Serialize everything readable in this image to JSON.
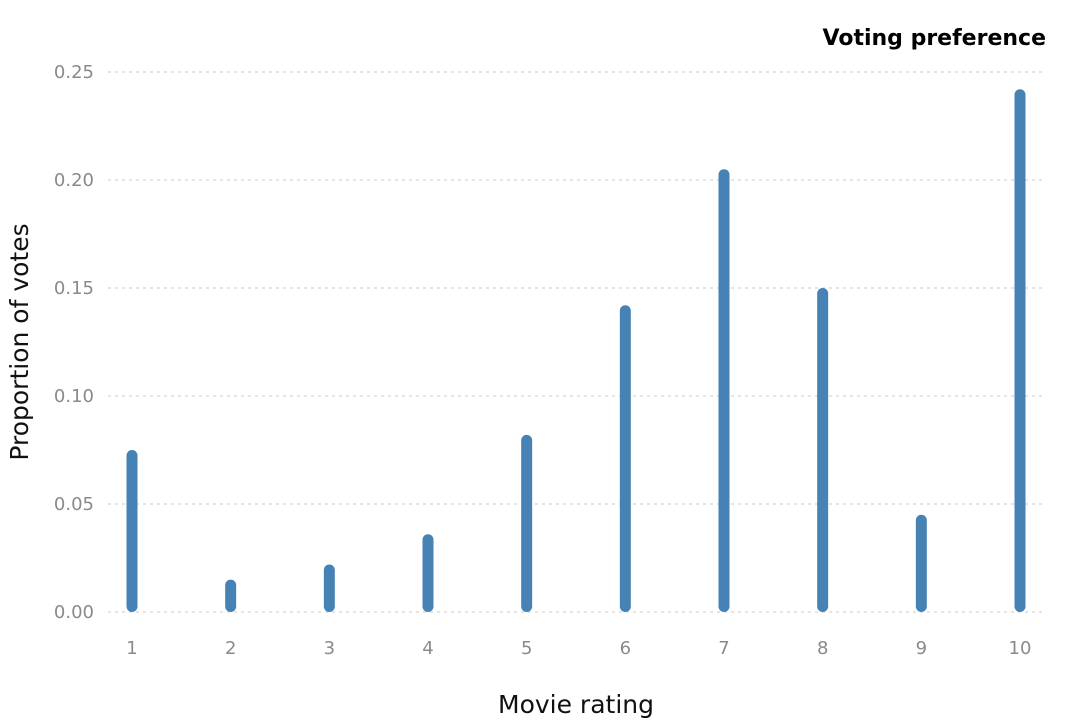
{
  "chart_data": {
    "type": "bar",
    "title": "Voting preference",
    "xlabel": "Movie rating",
    "ylabel": "Proportion of votes",
    "categories": [
      "1",
      "2",
      "3",
      "4",
      "5",
      "6",
      "7",
      "8",
      "9",
      "10"
    ],
    "values": [
      0.075,
      0.015,
      0.022,
      0.036,
      0.082,
      0.142,
      0.205,
      0.15,
      0.045,
      0.242
    ],
    "ylim": [
      0,
      0.25
    ],
    "yticks": [
      "0.00",
      "0.05",
      "0.10",
      "0.15",
      "0.20",
      "0.25"
    ],
    "grid": true,
    "legend": "none",
    "colors": {
      "bar": "#4682b4",
      "grid": "#d4d4d4",
      "tick_text": "#8a8a8a",
      "axis_text": "#111111"
    }
  }
}
